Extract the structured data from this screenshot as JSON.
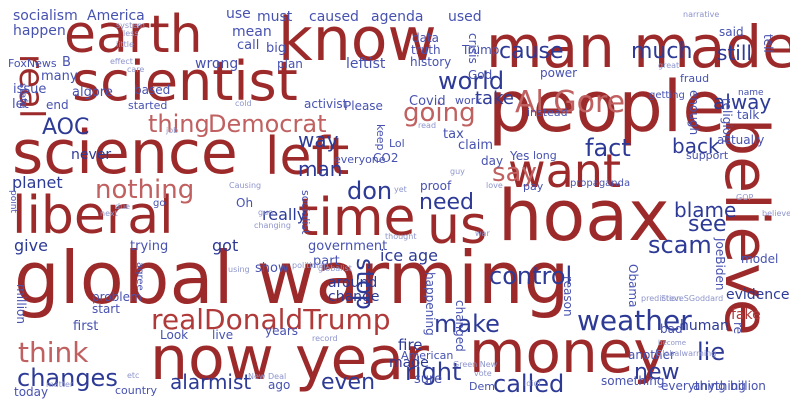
{
  "words": [
    "global warming",
    "people",
    "hoax",
    "now",
    "year",
    "money",
    "man made",
    "know",
    "earth",
    "scientist",
    "science",
    "left",
    "liberal",
    "time",
    "us",
    "want",
    "believe",
    "realDonaldTrump",
    "weather",
    "AOC",
    "Al Gore",
    "Democrat",
    "thing",
    "going",
    "world",
    "real",
    "nothing",
    "think",
    "changes",
    "say",
    "fact",
    "control",
    "scam",
    "right",
    "make",
    "need",
    "stop",
    "don",
    "lie",
    "new",
    "called",
    "cause",
    "much",
    "still",
    "alway",
    "blame",
    "see",
    "back",
    "even",
    "alarmist",
    "way",
    "man",
    "take",
    "tax",
    "socialism",
    "America",
    "caused",
    "agenda",
    "used",
    "use",
    "must",
    "happen",
    "mean",
    "call",
    "big",
    "leftist",
    "crisis",
    "wrong",
    "plan",
    "power",
    "FoxNews",
    "B",
    "history",
    "data",
    "truth",
    "Trump",
    "God",
    "issue",
    "let",
    "many",
    "based",
    "Covid",
    "work",
    "algore",
    "end",
    "fraud",
    "tell",
    "name",
    "said",
    "keep",
    "claim",
    "day",
    "Yes",
    "long",
    "enough",
    "religion",
    "actually",
    "talk",
    "good",
    "global",
    "political",
    "never",
    "planet",
    "ice age",
    "really",
    "give",
    "got",
    "trying",
    "around",
    "change",
    "part",
    "government",
    "Obama",
    "JoeBiden",
    "million",
    "CNN",
    "every",
    "fire",
    "made",
    "changed",
    "reason",
    "evidence",
    "Come",
    "human",
    "fake",
    "first",
    "Look",
    "live",
    "years",
    "ago",
    "sure",
    "American",
    "something",
    "everything",
    "anything",
    "billion",
    "another",
    "re",
    "Dem",
    "bad",
    "happening",
    "today",
    "country",
    "show",
    "start",
    "problem",
    "agree",
    "CO2",
    "Lol",
    "everyone",
    "support",
    "proof",
    "pay",
    "propaganda",
    "Oh",
    "go",
    "socialist",
    "point",
    "model",
    "state",
    "instead",
    "activist",
    "Please",
    "started",
    "getting",
    "prediction",
    "SteveSGoddard",
    "Globalwarming",
    "vote",
    "idiot",
    "become",
    "Green New",
    "record",
    "thought",
    "New Deal",
    "matter",
    "etc",
    "job",
    "little",
    "less",
    "narrative",
    "cold",
    "care",
    "great",
    "due",
    "next",
    "GOP",
    "gun",
    "politician",
    "Causing",
    "yet",
    "war",
    "love",
    "using",
    "changing",
    "globalist",
    "guy",
    "read",
    "believe",
    "system",
    "effect"
  ],
  "colors": {
    "dark_red": "#9c2a2a",
    "red": "#b03a3a",
    "pink": "#c06060",
    "dark_blue": "#2d3a96",
    "blue": "#4752b0",
    "light_blue": "#8e95cc",
    "pale_blue": "#b9bde0"
  }
}
